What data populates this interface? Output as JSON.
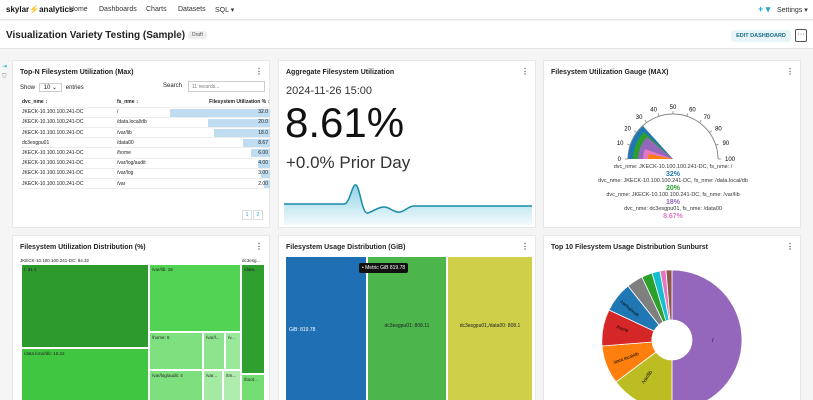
{
  "nav": {
    "logo_a": "skylar",
    "logo_b": "⚡",
    "logo_c": "analytics",
    "items": [
      "Home",
      "Dashboards",
      "Charts",
      "Datasets",
      "SQL ▾"
    ],
    "plus": "+ ▾",
    "settings": "Settings ▾"
  },
  "dashboard": {
    "title": "Visualization Variety Testing (Sample)",
    "star": "☆",
    "badge": "Draft",
    "edit": "EDIT DASHBOARD",
    "more": "···"
  },
  "card_menu": "⋮",
  "topn": {
    "title": "Top-N Filesystem Utilization (Max)",
    "show": "Show",
    "entries_value": "10",
    "entries_label": "entries",
    "search_label": "Search",
    "search_placeholder": "11 records...",
    "columns": [
      "dvc_nme ↕",
      "fs_nme ↕",
      "Filesystem Utilization % ↕"
    ],
    "rows": [
      [
        "JKECK-10.100.100.241-DC",
        "/",
        "32.0",
        32
      ],
      [
        "JKECK-10.100.100.241-DC",
        "/data.local/db",
        "20.0",
        20
      ],
      [
        "JKECK-10.100.100.241-DC",
        "/var/lib",
        "18.0",
        18
      ],
      [
        "dc3esgpu01",
        "/data00",
        "8.67",
        8.67
      ],
      [
        "JKECK-10.100.100.241-DC",
        "/home",
        "6.00",
        6
      ],
      [
        "JKECK-10.100.100.241-DC",
        "/var/log/audit",
        "4.00",
        4
      ],
      [
        "JKECK-10.100.100.241-DC",
        "/var/log",
        "3.00",
        3
      ],
      [
        "JKECK-10.100.100.241-DC",
        "/var",
        "2.00",
        2
      ]
    ],
    "pages": [
      "1",
      "2"
    ]
  },
  "aggregate": {
    "title": "Aggregate Filesystem Utilization",
    "date": "2024-11-26 15:00",
    "value": "8.61%",
    "compare": "+0.0% Prior Day"
  },
  "gauge": {
    "title": "Filesystem Utilization Gauge (MAX)",
    "ticks": [
      "0",
      "10",
      "20",
      "30",
      "40",
      "50",
      "60",
      "70",
      "80",
      "90",
      "100"
    ],
    "legend": [
      {
        "label": "dvc_nme: JKECK-10.100.100.241-DC, fs_nme: /",
        "value": "32%",
        "color": "#1f77b4"
      },
      {
        "label": "dvc_nme: JKECK-10.100.100.241-DC, fs_nme: /data.local/db",
        "value": "20%",
        "color": "#2ca02c"
      },
      {
        "label": "dvc_nme: JKECK-10.100.100.241-DC, fs_nme: /var/lib",
        "value": "18%",
        "color": "#9467bd"
      },
      {
        "label": "dvc_nme: dc3esgpu01, fs_nme: /data00",
        "value": "8.67%",
        "color": "#e377c2"
      }
    ]
  },
  "treemap": {
    "title": "Filesystem Utilization Distribution (%)",
    "header1": "JKECK-10.100.100.241-DC: 84.32",
    "header2": "dc3esg...",
    "cells": [
      "/: 31.1",
      "/var/lib: 18",
      "/data.local/db: 18.22",
      "/home: 6",
      "/var/l...",
      "/v...",
      "/var/log/audit: 4",
      "/var...",
      "/tm...",
      "/data...",
      "/boot..."
    ]
  },
  "usage": {
    "title": "Filesystem Usage Distribution (GiB)",
    "tooltip": "• Metric GiB 819.78",
    "cells": [
      "GiB: 819.78",
      "dc3esgpu01: 808.11",
      "dc3esgpu01,/data00: 808.1"
    ]
  },
  "sunburst": {
    "title": "Top 10 Filesystem Usage Distribution Sunburst",
    "labels": [
      "/",
      "/var/lib",
      "/data.local/db",
      "/home",
      "/var/log/audit"
    ]
  }
}
